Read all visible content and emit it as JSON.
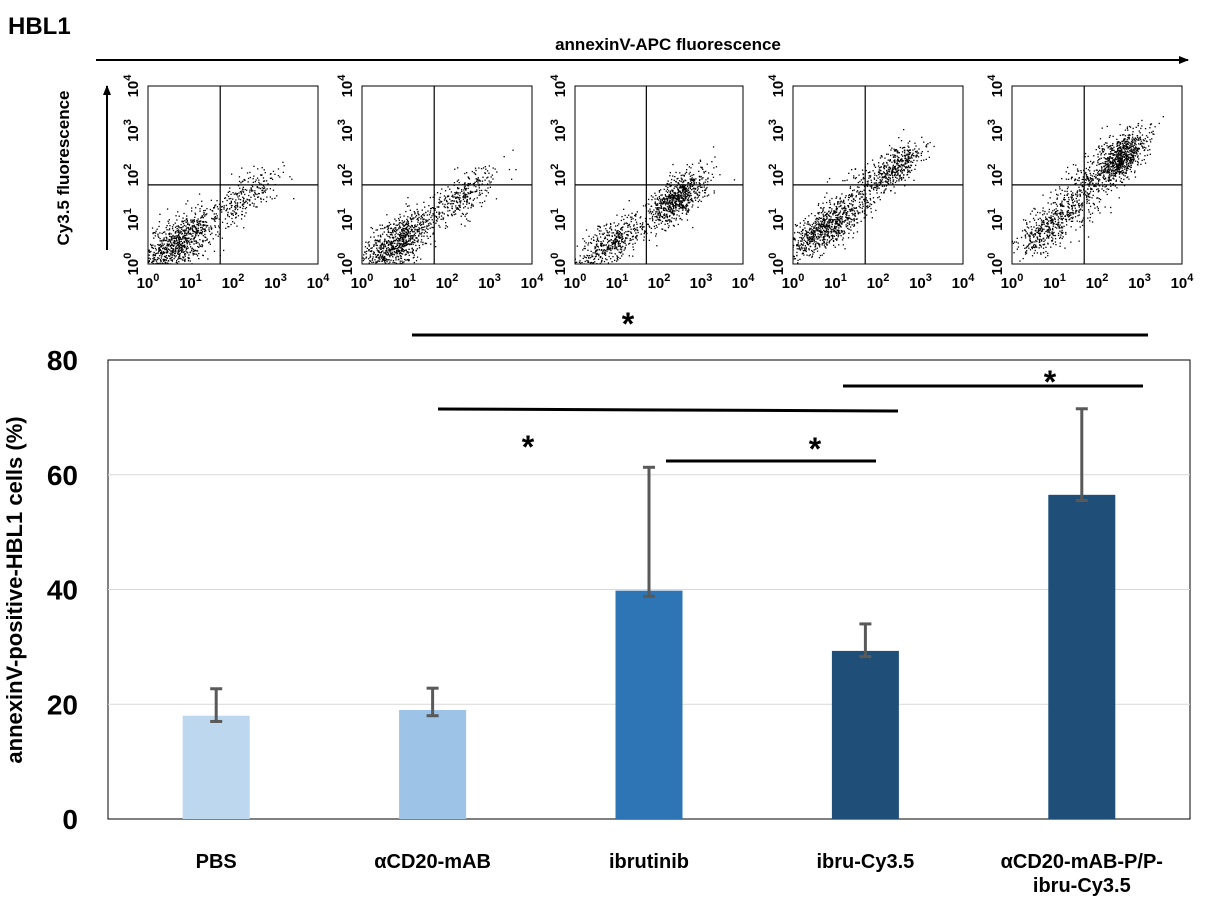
{
  "panel_label": "HBL1",
  "chart_data": [
    {
      "type": "scatter",
      "kind": "flow-cytometry-panels",
      "x_axis_label": "annexinV-APC fluorescence",
      "y_axis_label": "Cy3.5 fluorescence",
      "scale": "log",
      "xlim": [
        1,
        10000
      ],
      "ylim": [
        1,
        10000
      ],
      "tick_labels": [
        {
          "base": "10",
          "exp": "0"
        },
        {
          "base": "10",
          "exp": "1"
        },
        {
          "base": "10",
          "exp": "2"
        },
        {
          "base": "10",
          "exp": "3"
        },
        {
          "base": "10",
          "exp": "4"
        }
      ],
      "quadrant_gate": {
        "x": 50,
        "y": 60
      },
      "panels": [
        {
          "condition": "PBS",
          "clusters": [
            {
              "cx": 5,
              "cy": 3,
              "sx": 0.45,
              "sy": 0.35,
              "n": 900
            },
            {
              "cx": 200,
              "cy": 35,
              "sx": 0.4,
              "sy": 0.3,
              "n": 250
            }
          ]
        },
        {
          "condition": "αCD20-mAB",
          "clusters": [
            {
              "cx": 6,
              "cy": 3,
              "sx": 0.45,
              "sy": 0.35,
              "n": 900
            },
            {
              "cx": 250,
              "cy": 35,
              "sx": 0.4,
              "sy": 0.3,
              "n": 300
            }
          ]
        },
        {
          "condition": "ibrutinib",
          "clusters": [
            {
              "cx": 7,
              "cy": 3,
              "sx": 0.4,
              "sy": 0.3,
              "n": 450
            },
            {
              "cx": 250,
              "cy": 30,
              "sx": 0.35,
              "sy": 0.3,
              "n": 750
            }
          ]
        },
        {
          "condition": "ibru-Cy3.5",
          "clusters": [
            {
              "cx": 5,
              "cy": 6,
              "sx": 0.4,
              "sy": 0.3,
              "n": 700
            },
            {
              "cx": 250,
              "cy": 150,
              "sx": 0.3,
              "sy": 0.25,
              "n": 400
            },
            {
              "cx": 30,
              "cy": 30,
              "sx": 0.45,
              "sy": 0.45,
              "n": 250
            }
          ]
        },
        {
          "condition": "αCD20-mAB-P/P-ibru-Cy3.5",
          "clusters": [
            {
              "cx": 8,
              "cy": 8,
              "sx": 0.4,
              "sy": 0.35,
              "n": 450
            },
            {
              "cx": 350,
              "cy": 250,
              "sx": 0.3,
              "sy": 0.3,
              "n": 750
            },
            {
              "cx": 50,
              "cy": 50,
              "sx": 0.45,
              "sy": 0.45,
              "n": 300
            }
          ]
        }
      ]
    },
    {
      "type": "bar",
      "categories": [
        "PBS",
        "αCD20-mAB",
        "ibrutinib",
        "ibru-Cy3.5",
        "αCD20-mAB-P/P-ibru-Cy3.5"
      ],
      "category_label_lines": [
        [
          "PBS"
        ],
        [
          "αCD20-mAB"
        ],
        [
          "ibrutinib"
        ],
        [
          "ibru-Cy3.5"
        ],
        [
          "αCD20-mAB-P/P-",
          "ibru-Cy3.5"
        ]
      ],
      "values": [
        18,
        19,
        39.8,
        29.3,
        56.5
      ],
      "error_upper": [
        22.7,
        22.8,
        61.3,
        34,
        71.5
      ],
      "error_lower": [
        17,
        18,
        38.8,
        28.3,
        55.5
      ],
      "colors": [
        "#BDD7EE",
        "#9DC3E6",
        "#2E75B6",
        "#1F4E79",
        "#1F4E79"
      ],
      "ylabel": "annexinV-positive-HBL1 cells (%)",
      "ylim": [
        0,
        80
      ],
      "yticks": [
        0,
        20,
        40,
        60,
        80
      ],
      "grid": true,
      "significance": [
        {
          "from_category": "αCD20-mAB-P/P-ibru-Cy3.5",
          "to_category": "ibru-Cy3.5",
          "label": "*"
        },
        {
          "from_category": "ibrutinib",
          "to_category": "ibru-Cy3.5",
          "label": "*"
        },
        {
          "from_category": "αCD20-mAB",
          "to_category": "ibru-Cy3.5",
          "label": "*"
        },
        {
          "from_category": "αCD20-mAB",
          "to_category": "αCD20-mAB-P/P-ibru-Cy3.5",
          "label": "*"
        }
      ]
    }
  ]
}
